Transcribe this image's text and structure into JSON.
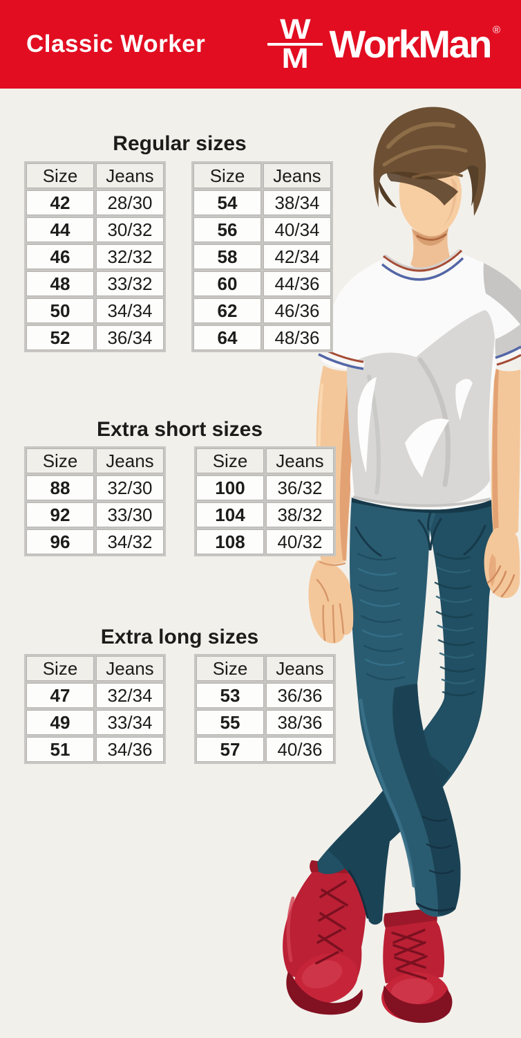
{
  "header": {
    "product_line": "Classic Worker",
    "brand": "WorkMan",
    "brand_mark_top": "W",
    "brand_mark_bottom": "M",
    "registered_mark": "®",
    "background_color": "#e20d21"
  },
  "page": {
    "background_color": "#f2f0eb",
    "text_color": "#1c1c1a",
    "table_frame_color": "#c7c6c2",
    "table_cell_color": "#fdfdfc",
    "table_header_cell_color": "#f0efe9"
  },
  "sections": [
    {
      "title": "Regular sizes",
      "tables": [
        {
          "headers": [
            "Size",
            "Jeans"
          ],
          "rows": [
            [
              "42",
              "28/30"
            ],
            [
              "44",
              "30/32"
            ],
            [
              "46",
              "32/32"
            ],
            [
              "48",
              "33/32"
            ],
            [
              "50",
              "34/34"
            ],
            [
              "52",
              "36/34"
            ]
          ]
        },
        {
          "headers": [
            "Size",
            "Jeans"
          ],
          "rows": [
            [
              "54",
              "38/34"
            ],
            [
              "56",
              "40/34"
            ],
            [
              "58",
              "42/34"
            ],
            [
              "60",
              "44/36"
            ],
            [
              "62",
              "46/36"
            ],
            [
              "64",
              "48/36"
            ]
          ]
        }
      ]
    },
    {
      "title": "Extra short sizes",
      "tables": [
        {
          "headers": [
            "Size",
            "Jeans"
          ],
          "rows": [
            [
              "88",
              "32/30"
            ],
            [
              "92",
              "33/30"
            ],
            [
              "96",
              "34/32"
            ]
          ]
        },
        {
          "headers": [
            "Size",
            "Jeans"
          ],
          "rows": [
            [
              "100",
              "36/32"
            ],
            [
              "104",
              "38/32"
            ],
            [
              "108",
              "40/32"
            ]
          ]
        }
      ]
    },
    {
      "title": "Extra long sizes",
      "tables": [
        {
          "headers": [
            "Size",
            "Jeans"
          ],
          "rows": [
            [
              "47",
              "32/34"
            ],
            [
              "49",
              "33/34"
            ],
            [
              "51",
              "34/36"
            ]
          ]
        },
        {
          "headers": [
            "Size",
            "Jeans"
          ],
          "rows": [
            [
              "53",
              "36/36"
            ],
            [
              "55",
              "38/36"
            ],
            [
              "57",
              "40/36"
            ]
          ]
        }
      ]
    }
  ],
  "illustration": {
    "description": "Faceless young man with side-swept brown hair, white crew-neck t-shirt with red and blue striped trim, slim teal jeans and red lace-up boots, standing with legs crossed",
    "colors": {
      "skin": "#f4c79a",
      "hair": "#6d5033",
      "shirt": "#fbfafa",
      "shirt_shadow": "#d8d7d5",
      "jeans": "#2a5c71",
      "jeans_shadow": "#1b4254",
      "boots": "#bb2034",
      "boot_sole": "#821122",
      "trim_red": "#a54c36",
      "trim_blue": "#5366a6"
    }
  }
}
